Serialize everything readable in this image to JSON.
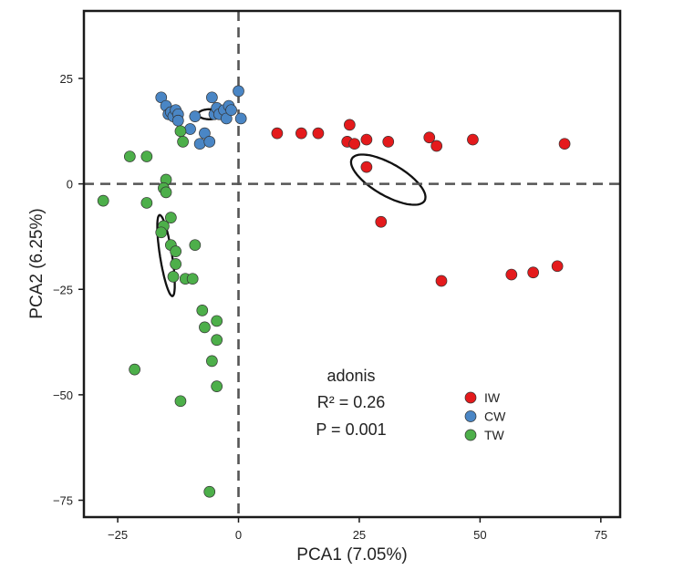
{
  "chart_data": {
    "type": "scatter",
    "title": "",
    "xlabel": "PCA1 (7.05%)",
    "ylabel": "PCA2 (6.25%)",
    "xlim": [
      -32,
      79
    ],
    "ylim": [
      -79,
      41
    ],
    "xticks": [
      -25,
      0,
      25,
      50,
      75
    ],
    "yticks": [
      25,
      0,
      -25,
      -50,
      -75
    ],
    "xtick_labels": [
      "−25",
      "0",
      "25",
      "50",
      "75"
    ],
    "ytick_labels": [
      "25",
      "0",
      "−25",
      "−50",
      "−75"
    ],
    "grid": false,
    "reference_lines": {
      "x": 0,
      "y": 0,
      "style": "dashed"
    },
    "legend_position": "bottom-right inside",
    "annotation": [
      "adonis",
      "R² = 0.26",
      "P = 0.001"
    ],
    "colors": {
      "IW": "#e41a1c",
      "CW": "#4a86c5",
      "TW": "#4daf4a"
    },
    "series": [
      {
        "name": "IW",
        "color": "#e41a1c",
        "points": [
          [
            8,
            12
          ],
          [
            13,
            12
          ],
          [
            16.5,
            12
          ],
          [
            23,
            14
          ],
          [
            22.5,
            10
          ],
          [
            24,
            9.5
          ],
          [
            26.5,
            10.5
          ],
          [
            26.5,
            4
          ],
          [
            31,
            10
          ],
          [
            39.5,
            11
          ],
          [
            41,
            9
          ],
          [
            48.5,
            10.5
          ],
          [
            67.5,
            9.5
          ],
          [
            29.5,
            -9
          ],
          [
            42,
            -23
          ],
          [
            56.5,
            -21.5
          ],
          [
            61,
            -21
          ],
          [
            66,
            -19.5
          ]
        ]
      },
      {
        "name": "CW",
        "color": "#4a86c5",
        "points": [
          [
            -16,
            20.5
          ],
          [
            -15,
            18.5
          ],
          [
            -14.5,
            16.5
          ],
          [
            -14,
            17
          ],
          [
            -13.5,
            16
          ],
          [
            -13,
            17.5
          ],
          [
            -12.5,
            16.5
          ],
          [
            -12.5,
            15
          ],
          [
            -10,
            13
          ],
          [
            -9,
            16
          ],
          [
            -8,
            9.5
          ],
          [
            -7,
            12
          ],
          [
            -6,
            10
          ],
          [
            -5.5,
            20.5
          ],
          [
            -5,
            16.5
          ],
          [
            -4.5,
            18
          ],
          [
            -4,
            16.5
          ],
          [
            -3,
            17.5
          ],
          [
            -2.5,
            15.5
          ],
          [
            -2,
            18.5
          ],
          [
            -1.5,
            17.5
          ],
          [
            0,
            22
          ],
          [
            0.5,
            15.5
          ]
        ]
      },
      {
        "name": "TW",
        "color": "#4daf4a",
        "points": [
          [
            -12,
            12.5
          ],
          [
            -11.5,
            10
          ],
          [
            -22.5,
            6.5
          ],
          [
            -19,
            6.5
          ],
          [
            -15,
            1
          ],
          [
            -15.5,
            -1
          ],
          [
            -15,
            -2
          ],
          [
            -28,
            -4
          ],
          [
            -19,
            -4.5
          ],
          [
            -14,
            -8
          ],
          [
            -15.5,
            -10
          ],
          [
            -16,
            -11.5
          ],
          [
            -14,
            -14.5
          ],
          [
            -13,
            -16
          ],
          [
            -9,
            -14.5
          ],
          [
            -13,
            -19
          ],
          [
            -13.5,
            -22
          ],
          [
            -11,
            -22.5
          ],
          [
            -9.5,
            -22.5
          ],
          [
            -7.5,
            -30
          ],
          [
            -4.5,
            -32.5
          ],
          [
            -7,
            -34
          ],
          [
            -4.5,
            -37
          ],
          [
            -5.5,
            -42
          ],
          [
            -21.5,
            -44
          ],
          [
            -4.5,
            -48
          ],
          [
            -12,
            -51.5
          ],
          [
            -6,
            -73
          ]
        ]
      }
    ],
    "ellipses": [
      {
        "series": "IW",
        "cx": 31,
        "cy": 1,
        "rx": 46,
        "ry": 17.5,
        "angle_deg": -30
      },
      {
        "series": "CW",
        "cx": -6,
        "cy": 16.5,
        "rx": 12.5,
        "ry": 5.5,
        "angle_deg": 0
      },
      {
        "series": "TW",
        "cx": -15,
        "cy": -17,
        "rx": 45,
        "ry": 6.6,
        "angle_deg": -81
      }
    ]
  }
}
